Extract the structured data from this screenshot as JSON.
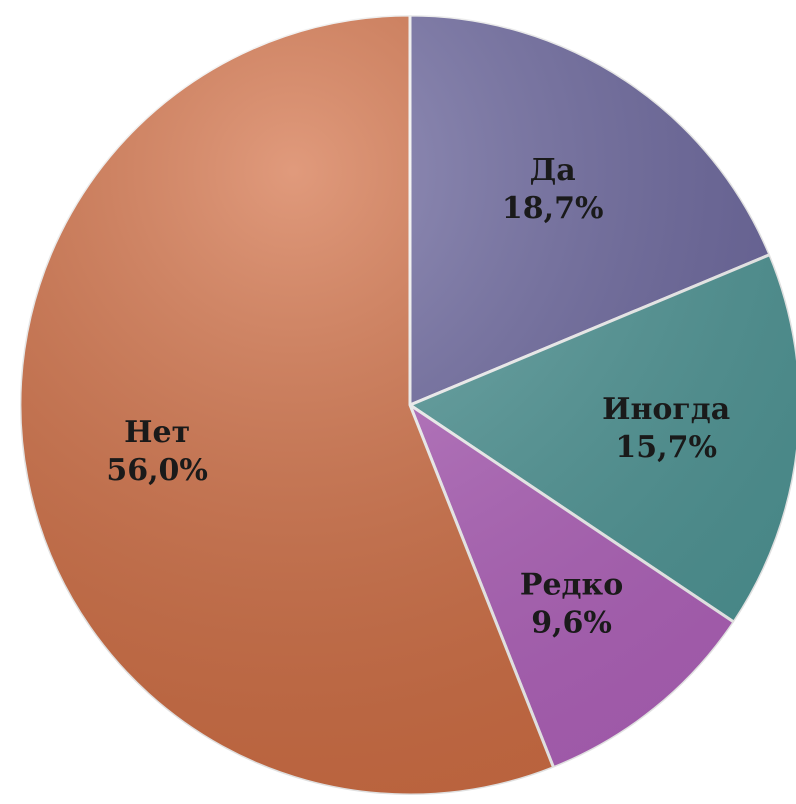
{
  "chart_data": {
    "type": "pie",
    "categories": [
      "Да",
      "Иногда",
      "Редко",
      "Нет"
    ],
    "values": [
      18.7,
      15.7,
      9.6,
      56.0
    ],
    "value_labels": [
      "18,7%",
      "15,7%",
      "9,6%",
      "56,0%"
    ],
    "colors": [
      "#6b669f",
      "#4f9898",
      "#b464bf",
      "#d36f44"
    ]
  }
}
